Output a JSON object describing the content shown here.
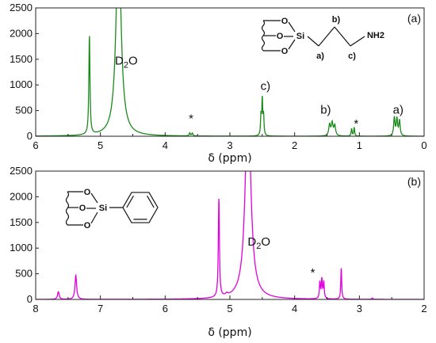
{
  "chart_data": [
    {
      "type": "line",
      "panel_label": "(a)",
      "color": "#1a8a1a",
      "xlabel": "δ (ppm)",
      "xlim": [
        6,
        0
      ],
      "ylim": [
        0,
        2500
      ],
      "x_ticks": [
        "6",
        "5",
        "4",
        "3",
        "2",
        "1",
        "0"
      ],
      "y_ticks": [
        "0",
        "500",
        "1000",
        "1500",
        "2000",
        "2500"
      ],
      "peaks": [
        {
          "x": 5.17,
          "y": 1950,
          "w": 0.01
        },
        {
          "x": 4.72,
          "y": 4000,
          "w": 0.045
        },
        {
          "x": 3.62,
          "y": 60,
          "w": 0.01
        },
        {
          "x": 3.58,
          "y": 55,
          "w": 0.01
        },
        {
          "x": 2.52,
          "y": 380,
          "w": 0.008
        },
        {
          "x": 2.5,
          "y": 700,
          "w": 0.008
        },
        {
          "x": 2.48,
          "y": 380,
          "w": 0.008
        },
        {
          "x": 1.46,
          "y": 220,
          "w": 0.015
        },
        {
          "x": 1.42,
          "y": 250,
          "w": 0.015
        },
        {
          "x": 1.38,
          "y": 200,
          "w": 0.015
        },
        {
          "x": 1.12,
          "y": 150,
          "w": 0.008
        },
        {
          "x": 1.08,
          "y": 170,
          "w": 0.008
        },
        {
          "x": 0.46,
          "y": 360,
          "w": 0.012
        },
        {
          "x": 0.42,
          "y": 330,
          "w": 0.012
        },
        {
          "x": 0.38,
          "y": 300,
          "w": 0.012
        }
      ],
      "annotations": [
        {
          "text": "D",
          "sub": "2",
          "tail": "O",
          "x": 4.6,
          "y": 1400
        },
        {
          "text": "c)",
          "x": 2.45,
          "y": 900
        },
        {
          "text": "*",
          "x": 3.6,
          "y": 270
        },
        {
          "text": "b)",
          "x": 1.52,
          "y": 440
        },
        {
          "text": "*",
          "x": 1.05,
          "y": 170
        },
        {
          "text": "a)",
          "x": 0.4,
          "y": 440
        }
      ],
      "structure_labels": [
        "O",
        "O",
        "O",
        "Si",
        "b)",
        "NH2",
        "a)",
        "c)"
      ]
    },
    {
      "type": "line",
      "panel_label": "(b)",
      "color": "#e000e0",
      "xlabel": "δ (ppm)",
      "xlim": [
        8,
        2
      ],
      "ylim": [
        0,
        2500
      ],
      "x_ticks": [
        "8",
        "7",
        "6",
        "5",
        "4",
        "3",
        "2"
      ],
      "y_ticks": [
        "0",
        "500",
        "1000",
        "1500",
        "2000",
        "2500"
      ],
      "peaks": [
        {
          "x": 7.65,
          "y": 150,
          "w": 0.015
        },
        {
          "x": 7.38,
          "y": 470,
          "w": 0.015
        },
        {
          "x": 5.17,
          "y": 1950,
          "w": 0.01
        },
        {
          "x": 5.05,
          "y": 40,
          "w": 0.02
        },
        {
          "x": 4.72,
          "y": 4000,
          "w": 0.05
        },
        {
          "x": 3.61,
          "y": 330,
          "w": 0.009
        },
        {
          "x": 3.58,
          "y": 380,
          "w": 0.009
        },
        {
          "x": 3.55,
          "y": 330,
          "w": 0.009
        },
        {
          "x": 3.28,
          "y": 620,
          "w": 0.008
        },
        {
          "x": 2.8,
          "y": 25,
          "w": 0.01
        }
      ],
      "annotations": [
        {
          "text": "D",
          "sub": "2",
          "tail": "O",
          "x": 4.55,
          "y": 1050
        },
        {
          "text": "*",
          "x": 3.72,
          "y": 450
        }
      ],
      "structure_labels": [
        "O",
        "O",
        "O",
        "Si"
      ]
    }
  ]
}
